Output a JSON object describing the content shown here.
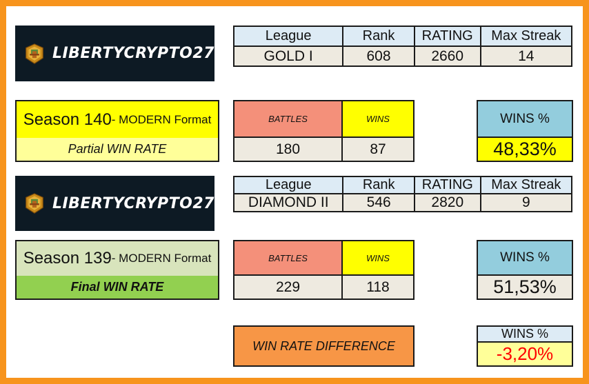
{
  "colors": {
    "border": "#f7941d",
    "logo_bg": "#0d1a24",
    "header_blue": "#ddebf5",
    "value_cream": "#eeeae0",
    "battles_salmon": "#f4907a",
    "wins_yellow": "#ffff00",
    "winspct_blue": "#93cddd",
    "season140_yellow": "#ffff00",
    "season140_light": "#ffff99",
    "season139_green_light": "#d8e4bc",
    "season139_green": "#92d050",
    "difference_orange": "#f79646",
    "negative_red": "#ff0000"
  },
  "logo": {
    "brand": "LIBERTYCRYPTO27",
    "icon": "splinterlands-emblem-icon"
  },
  "stats_headers": {
    "league": "League",
    "rank": "Rank",
    "rating": "RATING",
    "max_streak": "Max Streak"
  },
  "season140_stats": {
    "league": "GOLD I",
    "rank": "608",
    "rating": "2660",
    "max_streak": "14"
  },
  "season139_stats": {
    "league": "DIAMOND II",
    "rank": "546",
    "rating": "2820",
    "max_streak": "9"
  },
  "season140": {
    "title_num": "Season 140",
    "title_format": " - MODERN Format",
    "subtitle": "Partial WIN RATE",
    "battles_label": "BATTLES",
    "wins_label": "WINS",
    "battles": "180",
    "wins": "87",
    "winspct_label": "WINS %",
    "winspct": "48,33%"
  },
  "season139": {
    "title_num": "Season 139",
    "title_format": " - MODERN Format",
    "subtitle": "Final WIN RATE",
    "battles_label": "BATTLES",
    "wins_label": "WINS",
    "battles": "229",
    "wins": "118",
    "winspct_label": "WINS %",
    "winspct": "51,53%"
  },
  "difference": {
    "label": "WIN RATE DIFFERENCE",
    "winspct_label": "WINS %",
    "value": "-3,20%"
  }
}
